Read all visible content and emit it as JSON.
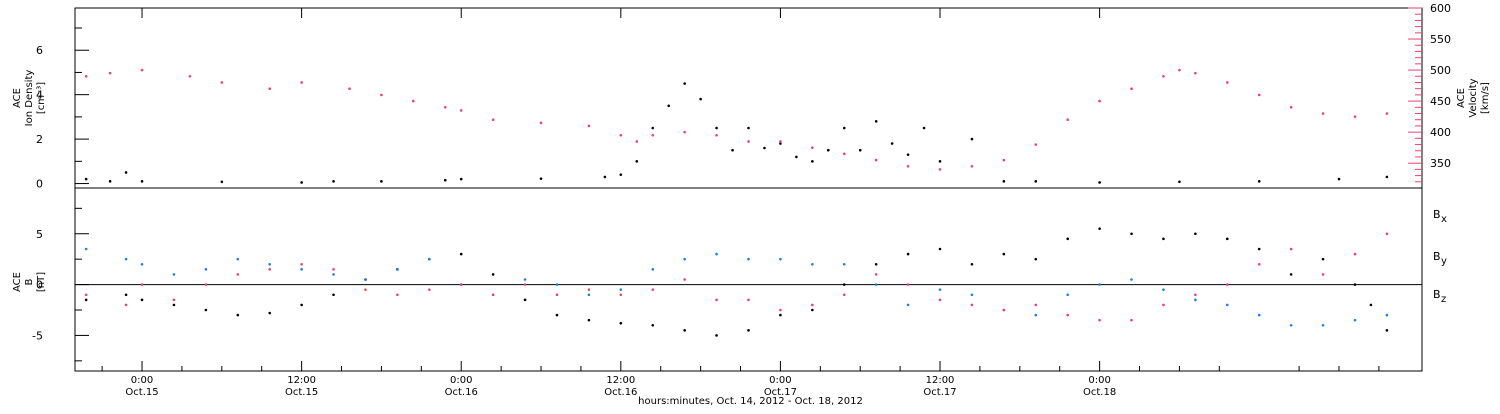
{
  "chart_data": [
    {
      "type": "scatter",
      "panel": "top",
      "ylabel_left": [
        "ACE",
        "Ion Density",
        "[cm⁻³]"
      ],
      "ylabel_right": [
        "ACE",
        "Velocity",
        "[km/s]"
      ],
      "left_ticks": [
        "0",
        "2",
        "4",
        "6"
      ],
      "right_ticks": [
        "350",
        "400",
        "450",
        "500",
        "550",
        "600"
      ],
      "left_ylim": [
        -0.2,
        7.9
      ],
      "right_ylim": [
        310,
        600
      ],
      "series": [
        {
          "color": "#000000",
          "axis": "left",
          "points": [
            [
              -0.35,
              0.2
            ],
            [
              -0.2,
              0.1
            ],
            [
              -0.1,
              0.5
            ],
            [
              0.0,
              0.1
            ],
            [
              0.5,
              0.08
            ],
            [
              1.0,
              0.05
            ],
            [
              1.2,
              0.1
            ],
            [
              1.5,
              0.1
            ],
            [
              1.9,
              0.15
            ],
            [
              2.0,
              0.2
            ],
            [
              2.5,
              0.22
            ],
            [
              2.9,
              0.3
            ],
            [
              3.0,
              0.4
            ],
            [
              3.1,
              1.0
            ],
            [
              3.2,
              2.5
            ],
            [
              3.3,
              3.5
            ],
            [
              3.4,
              4.5
            ],
            [
              3.5,
              3.8
            ],
            [
              3.6,
              2.5
            ],
            [
              3.7,
              1.5
            ],
            [
              3.8,
              2.5
            ],
            [
              3.9,
              1.6
            ],
            [
              4.0,
              1.8
            ],
            [
              4.1,
              1.2
            ],
            [
              4.2,
              1.0
            ],
            [
              4.3,
              1.5
            ],
            [
              4.4,
              2.5
            ],
            [
              4.5,
              1.5
            ],
            [
              4.6,
              2.8
            ],
            [
              4.7,
              1.8
            ],
            [
              4.8,
              1.3
            ],
            [
              4.9,
              2.5
            ],
            [
              5.0,
              1.0
            ],
            [
              5.2,
              2.0
            ],
            [
              5.4,
              0.1
            ],
            [
              5.6,
              0.1
            ],
            [
              6.0,
              0.05
            ],
            [
              6.5,
              0.08
            ],
            [
              7.0,
              0.1
            ],
            [
              7.5,
              0.2
            ],
            [
              7.8,
              0.3
            ]
          ]
        },
        {
          "color": "#e8436a",
          "axis": "right",
          "points": [
            [
              -0.35,
              490
            ],
            [
              -0.2,
              495
            ],
            [
              0.0,
              500
            ],
            [
              0.3,
              490
            ],
            [
              0.5,
              480
            ],
            [
              0.8,
              470
            ],
            [
              1.0,
              480
            ],
            [
              1.3,
              470
            ],
            [
              1.5,
              460
            ],
            [
              1.7,
              450
            ],
            [
              1.9,
              440
            ],
            [
              2.0,
              435
            ],
            [
              2.2,
              420
            ],
            [
              2.5,
              415
            ],
            [
              2.8,
              410
            ],
            [
              3.0,
              395
            ],
            [
              3.1,
              385
            ],
            [
              3.2,
              395
            ],
            [
              3.4,
              400
            ],
            [
              3.6,
              395
            ],
            [
              3.8,
              385
            ],
            [
              4.0,
              385
            ],
            [
              4.2,
              375
            ],
            [
              4.4,
              365
            ],
            [
              4.6,
              355
            ],
            [
              4.8,
              345
            ],
            [
              5.0,
              340
            ],
            [
              5.2,
              345
            ],
            [
              5.4,
              355
            ],
            [
              5.6,
              380
            ],
            [
              5.8,
              420
            ],
            [
              6.0,
              450
            ],
            [
              6.2,
              470
            ],
            [
              6.4,
              490
            ],
            [
              6.5,
              500
            ],
            [
              6.6,
              495
            ],
            [
              6.8,
              480
            ],
            [
              7.0,
              460
            ],
            [
              7.2,
              440
            ],
            [
              7.4,
              430
            ],
            [
              7.6,
              425
            ],
            [
              7.8,
              430
            ]
          ]
        }
      ]
    },
    {
      "type": "scatter",
      "panel": "bottom",
      "ylabel_left": [
        "ACE",
        "B",
        "[nT]"
      ],
      "left_ticks": [
        "-5",
        "0",
        "5"
      ],
      "ylim": [
        -8.5,
        9.5
      ],
      "zero_line": true,
      "legend": [
        {
          "text": "B",
          "sub": "x",
          "color": "#000000"
        },
        {
          "text": "B",
          "sub": "y",
          "color": "#1a7fe0"
        },
        {
          "text": "B",
          "sub": "z",
          "color": "#e8436a"
        }
      ],
      "series": [
        {
          "name": "Bx",
          "color": "#000000",
          "points": [
            [
              -0.35,
              -1.5
            ],
            [
              -0.1,
              -1.0
            ],
            [
              0.0,
              -1.5
            ],
            [
              0.2,
              -2.0
            ],
            [
              0.4,
              -2.5
            ],
            [
              0.6,
              -3.0
            ],
            [
              0.8,
              -2.8
            ],
            [
              1.0,
              -2.0
            ],
            [
              1.2,
              -1.0
            ],
            [
              1.4,
              0.5
            ],
            [
              1.6,
              1.5
            ],
            [
              1.8,
              2.5
            ],
            [
              2.0,
              3.0
            ],
            [
              2.2,
              1.0
            ],
            [
              2.4,
              -1.5
            ],
            [
              2.6,
              -3.0
            ],
            [
              2.8,
              -3.5
            ],
            [
              3.0,
              -3.8
            ],
            [
              3.2,
              -4.0
            ],
            [
              3.4,
              -4.5
            ],
            [
              3.6,
              -5.0
            ],
            [
              3.8,
              -4.5
            ],
            [
              4.0,
              -3.0
            ],
            [
              4.2,
              -2.5
            ],
            [
              4.4,
              0.0
            ],
            [
              4.6,
              2.0
            ],
            [
              4.8,
              3.0
            ],
            [
              5.0,
              3.5
            ],
            [
              5.2,
              2.0
            ],
            [
              5.4,
              3.0
            ],
            [
              5.6,
              2.5
            ],
            [
              5.8,
              4.5
            ],
            [
              6.0,
              5.5
            ],
            [
              6.2,
              5.0
            ],
            [
              6.4,
              4.5
            ],
            [
              6.6,
              5.0
            ],
            [
              6.8,
              4.5
            ],
            [
              7.0,
              3.5
            ],
            [
              7.2,
              1.0
            ],
            [
              7.4,
              2.5
            ],
            [
              7.6,
              0.0
            ],
            [
              7.7,
              -2.0
            ],
            [
              7.8,
              -4.5
            ]
          ]
        },
        {
          "name": "By",
          "color": "#1a7fe0",
          "points": [
            [
              -0.35,
              3.5
            ],
            [
              -0.1,
              2.5
            ],
            [
              0.0,
              2.0
            ],
            [
              0.2,
              1.0
            ],
            [
              0.4,
              1.5
            ],
            [
              0.6,
              2.5
            ],
            [
              0.8,
              2.0
            ],
            [
              1.0,
              1.5
            ],
            [
              1.2,
              1.0
            ],
            [
              1.4,
              0.5
            ],
            [
              1.6,
              1.5
            ],
            [
              1.8,
              2.5
            ],
            [
              2.0,
              0.0
            ],
            [
              2.2,
              -1.0
            ],
            [
              2.4,
              0.5
            ],
            [
              2.6,
              0.0
            ],
            [
              2.8,
              -1.0
            ],
            [
              3.0,
              -0.5
            ],
            [
              3.2,
              1.5
            ],
            [
              3.4,
              2.5
            ],
            [
              3.6,
              3.0
            ],
            [
              3.8,
              2.5
            ],
            [
              4.0,
              2.5
            ],
            [
              4.2,
              2.0
            ],
            [
              4.4,
              2.0
            ],
            [
              4.6,
              0.0
            ],
            [
              4.8,
              -2.0
            ],
            [
              5.0,
              -0.5
            ],
            [
              5.2,
              -1.0
            ],
            [
              5.4,
              -2.5
            ],
            [
              5.6,
              -3.0
            ],
            [
              5.8,
              -1.0
            ],
            [
              6.0,
              0.0
            ],
            [
              6.2,
              0.5
            ],
            [
              6.4,
              -0.5
            ],
            [
              6.6,
              -1.5
            ],
            [
              6.8,
              -2.0
            ],
            [
              7.0,
              -3.0
            ],
            [
              7.2,
              -4.0
            ],
            [
              7.4,
              -4.0
            ],
            [
              7.6,
              -3.5
            ],
            [
              7.8,
              -3.0
            ]
          ]
        },
        {
          "name": "Bz",
          "color": "#e8436a",
          "points": [
            [
              -0.35,
              -1.0
            ],
            [
              -0.1,
              -2.0
            ],
            [
              0.0,
              0.0
            ],
            [
              0.2,
              -1.5
            ],
            [
              0.4,
              0.0
            ],
            [
              0.6,
              1.0
            ],
            [
              0.8,
              1.5
            ],
            [
              1.0,
              2.0
            ],
            [
              1.2,
              1.5
            ],
            [
              1.4,
              -0.5
            ],
            [
              1.6,
              -1.0
            ],
            [
              1.8,
              -0.5
            ],
            [
              2.0,
              0.0
            ],
            [
              2.2,
              -1.0
            ],
            [
              2.4,
              0.0
            ],
            [
              2.6,
              -1.0
            ],
            [
              2.8,
              -0.5
            ],
            [
              3.0,
              -1.0
            ],
            [
              3.2,
              -0.5
            ],
            [
              3.4,
              0.5
            ],
            [
              3.6,
              -1.5
            ],
            [
              3.8,
              -1.5
            ],
            [
              4.0,
              -2.5
            ],
            [
              4.2,
              -2.0
            ],
            [
              4.4,
              -1.0
            ],
            [
              4.6,
              1.0
            ],
            [
              4.8,
              0.0
            ],
            [
              5.0,
              -1.5
            ],
            [
              5.2,
              -2.0
            ],
            [
              5.4,
              -2.5
            ],
            [
              5.6,
              -2.0
            ],
            [
              5.8,
              -3.0
            ],
            [
              6.0,
              -3.5
            ],
            [
              6.2,
              -3.5
            ],
            [
              6.4,
              -2.0
            ],
            [
              6.6,
              -1.0
            ],
            [
              6.8,
              0.0
            ],
            [
              7.0,
              2.0
            ],
            [
              7.2,
              3.5
            ],
            [
              7.4,
              1.0
            ],
            [
              7.6,
              3.0
            ],
            [
              7.8,
              5.0
            ]
          ]
        }
      ]
    }
  ],
  "x_axis": {
    "range": [
      -0.42,
      8.02
    ],
    "ticks": [
      {
        "x": 0,
        "line1": "0:00",
        "line2": "Oct.15"
      },
      {
        "x": 1,
        "line1": "12:00",
        "line2": "Oct.15"
      },
      {
        "x": 2,
        "line1": "0:00",
        "line2": "Oct.16"
      },
      {
        "x": 3,
        "line1": "12:00",
        "line2": "Oct.16"
      },
      {
        "x": 4,
        "line1": "0:00",
        "line2": "Oct.17"
      },
      {
        "x": 5,
        "line1": "12:00",
        "line2": "Oct.17"
      },
      {
        "x": 6,
        "line1": "0:00",
        "line2": "Oct.18"
      }
    ],
    "label": "hours:minutes, Oct. 14, 2012 - Oct. 18, 2012"
  }
}
